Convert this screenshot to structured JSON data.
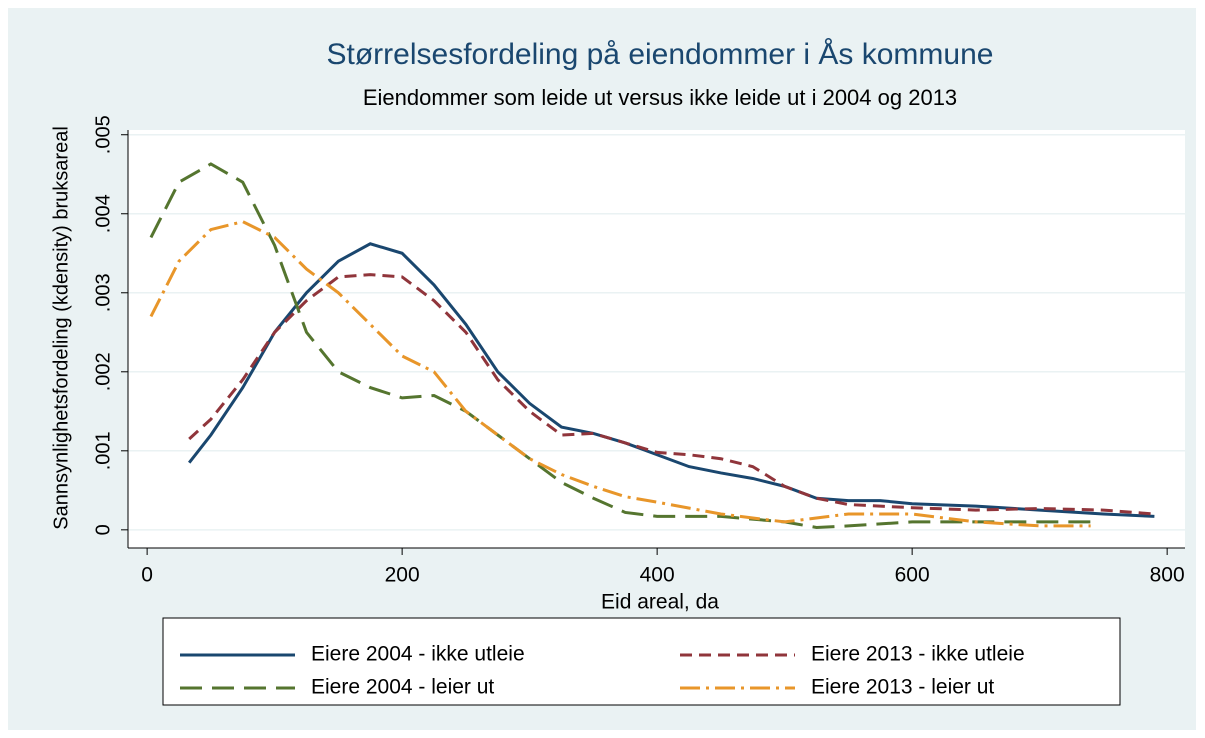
{
  "chart_data": {
    "type": "line",
    "title": "Størrelsesfordeling på eiendommer i Ås kommune",
    "subtitle": "Eiendommer som leide ut versus ikke leide ut i 2004 og 2013",
    "x_label": "Eid areal, da",
    "y_label": "Sannsynlighetsfordeling (kdensity) bruksareal",
    "xlim": [
      -15,
      814
    ],
    "ylim": [
      -0.00023,
      0.00506
    ],
    "xticks": [
      0,
      200,
      400,
      600,
      800
    ],
    "yticks": [
      0,
      {
        "value": 0.001,
        "label": ".001"
      },
      {
        "value": 0.002,
        "label": ".002"
      },
      {
        "value": 0.003,
        "label": ".003"
      },
      {
        "value": 0.004,
        "label": ".004"
      },
      {
        "value": 0.005,
        "label": ".005"
      }
    ],
    "grid": true,
    "legend_position": "bottom",
    "series": [
      {
        "name": "Eiere 2004 - ikke utleie",
        "color": "#1a476f",
        "line_style": "solid",
        "x": [
          33,
          50,
          75,
          100,
          125,
          150,
          175,
          200,
          225,
          250,
          275,
          300,
          325,
          350,
          375,
          400,
          425,
          450,
          475,
          500,
          525,
          550,
          575,
          600,
          650,
          700,
          750,
          790
        ],
        "values": [
          0.00085,
          0.0012,
          0.0018,
          0.0025,
          0.003,
          0.0034,
          0.00362,
          0.0035,
          0.0031,
          0.0026,
          0.002,
          0.0016,
          0.0013,
          0.00122,
          0.0011,
          0.00095,
          0.0008,
          0.00072,
          0.00065,
          0.00055,
          0.0004,
          0.00037,
          0.00037,
          0.00033,
          0.0003,
          0.00025,
          0.0002,
          0.00017
        ]
      },
      {
        "name": "Eiere 2013 - ikke utleie",
        "color": "#90353b",
        "line_style": "dashed",
        "x": [
          33,
          50,
          75,
          100,
          125,
          150,
          175,
          200,
          225,
          250,
          275,
          300,
          325,
          350,
          375,
          400,
          425,
          450,
          475,
          500,
          525,
          550,
          600,
          650,
          700,
          750,
          790
        ],
        "values": [
          0.00115,
          0.0014,
          0.0019,
          0.0025,
          0.0029,
          0.0032,
          0.00323,
          0.0032,
          0.0029,
          0.0025,
          0.0019,
          0.0015,
          0.0012,
          0.00122,
          0.0011,
          0.00098,
          0.00095,
          0.0009,
          0.0008,
          0.00055,
          0.0004,
          0.00032,
          0.00028,
          0.00025,
          0.00027,
          0.00025,
          0.0002
        ]
      },
      {
        "name": "Eiere 2004 - leier ut",
        "color": "#55752f",
        "line_style": "longdash",
        "x": [
          3,
          25,
          50,
          75,
          100,
          125,
          150,
          175,
          200,
          225,
          250,
          275,
          300,
          325,
          350,
          375,
          400,
          450,
          500,
          525,
          550,
          600,
          650,
          700,
          740
        ],
        "values": [
          0.0037,
          0.0044,
          0.00463,
          0.0044,
          0.0036,
          0.0025,
          0.002,
          0.0018,
          0.00167,
          0.0017,
          0.0015,
          0.0012,
          0.0009,
          0.0006,
          0.0004,
          0.00022,
          0.00017,
          0.00017,
          0.0001,
          3e-05,
          5e-05,
          0.0001,
          0.0001,
          0.0001,
          0.0001
        ]
      },
      {
        "name": "Eiere 2013 - leier ut",
        "color": "#e8962a",
        "line_style": "dashdot",
        "x": [
          3,
          25,
          50,
          75,
          100,
          125,
          150,
          175,
          200,
          225,
          250,
          275,
          300,
          325,
          350,
          375,
          400,
          450,
          500,
          550,
          600,
          650,
          700,
          740
        ],
        "values": [
          0.0027,
          0.0034,
          0.0038,
          0.0039,
          0.0037,
          0.0033,
          0.003,
          0.0026,
          0.0022,
          0.002,
          0.0015,
          0.0012,
          0.0009,
          0.0007,
          0.00055,
          0.00042,
          0.00035,
          0.0002,
          0.0001,
          0.0002,
          0.0002,
          0.0001,
          5e-05,
          5e-05
        ]
      }
    ]
  }
}
